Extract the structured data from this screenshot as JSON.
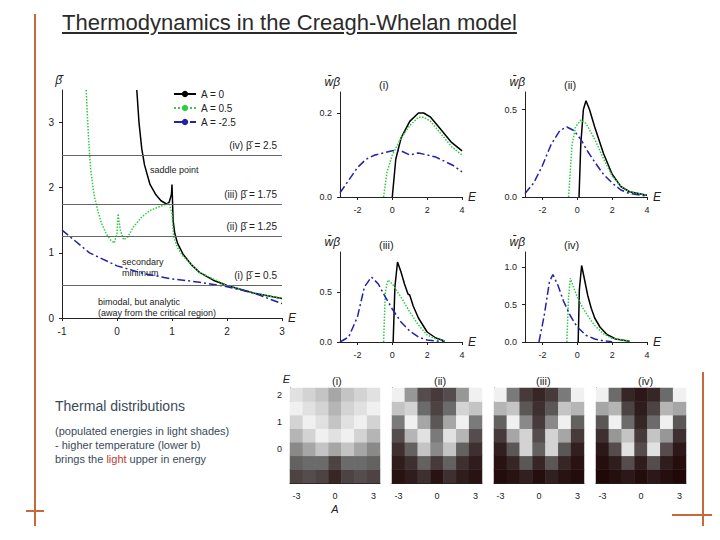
{
  "slide": {
    "title": "Thermodynamics in the Creagh-Whelan model",
    "caption": {
      "heading": "Thermal distributions",
      "lines": [
        [
          {
            "text": "(populated energies in light shades)"
          }
        ],
        [
          {
            "text": "- higher temperature (lower b)"
          }
        ],
        [
          {
            "text": "brings the "
          },
          {
            "text": "light",
            "color": "#c0392b"
          },
          {
            "text": " upper in energy"
          }
        ]
      ]
    }
  },
  "chart_data": [
    {
      "type": "line",
      "xlabel": "E",
      "ylabel": "β̄",
      "xlim": [
        -1,
        3
      ],
      "xticks": [
        -1,
        0,
        1,
        2,
        3
      ],
      "ylim": [
        0,
        3.5
      ],
      "yticks": [
        0,
        1,
        2,
        3
      ],
      "legend": "top",
      "series": [
        {
          "name": "A = 0",
          "color": "#000000",
          "line_style": "solid",
          "x": [
            0.36,
            0.4,
            0.45,
            0.5,
            0.6,
            0.7,
            0.8,
            0.9,
            0.95,
            0.99,
            1.0,
            1.02,
            1.05,
            1.1,
            1.2,
            1.35,
            1.5,
            1.75,
            2.0,
            2.5,
            3.0
          ],
          "values": [
            3.5,
            3.0,
            2.6,
            2.35,
            2.05,
            1.9,
            1.8,
            1.75,
            1.78,
            1.9,
            2.05,
            1.5,
            1.3,
            1.15,
            0.98,
            0.82,
            0.7,
            0.58,
            0.5,
            0.38,
            0.3
          ]
        },
        {
          "name": "A = 0.5",
          "color": "#2ecc40",
          "line_style": "dotted",
          "x": [
            -0.56,
            -0.52,
            -0.48,
            -0.42,
            -0.35,
            -0.28,
            -0.2,
            -0.12,
            -0.05,
            0.0,
            0.02,
            0.06,
            0.12,
            0.2,
            0.3,
            0.45,
            0.6,
            0.8,
            0.95,
            1.0,
            1.03,
            1.1,
            1.2,
            1.5,
            2.0,
            2.5,
            3.0
          ],
          "values": [
            3.5,
            2.8,
            2.3,
            1.9,
            1.65,
            1.45,
            1.3,
            1.2,
            1.15,
            1.3,
            1.6,
            1.35,
            1.2,
            1.25,
            1.4,
            1.55,
            1.65,
            1.72,
            1.76,
            1.6,
            1.25,
            1.08,
            0.95,
            0.7,
            0.5,
            0.38,
            0.3
          ]
        },
        {
          "name": "A = -2.5",
          "color": "#2222aa",
          "line_style": "dashdot",
          "x": [
            -1,
            -0.5,
            0,
            0.5,
            1,
            1.5,
            2,
            2.5,
            3
          ],
          "values": [
            1.35,
            1.0,
            0.8,
            0.68,
            0.6,
            0.55,
            0.48,
            0.38,
            0.22
          ]
        }
      ],
      "reference_lines": [
        {
          "value": 0.5,
          "label": "(i) β̄ = 0.5"
        },
        {
          "value": 1.25,
          "label": "(ii) β̄ = 1.25"
        },
        {
          "value": 1.75,
          "label": "(iii) β̄ = 1.75"
        },
        {
          "value": 2.5,
          "label": "(iv) β̄ = 2.5"
        }
      ],
      "annotations": [
        "saddle point",
        "secondary\nminimum",
        "bimodal, but analytic\n(away from the critical region)"
      ]
    },
    {
      "type": "line",
      "title": "(i)",
      "xlabel": "E",
      "ylabel": "w̄β",
      "xlim": [
        -3,
        4
      ],
      "xticks": [
        -2,
        0,
        2,
        4
      ],
      "ylim": [
        0,
        0.25
      ],
      "yticks": [
        {
          "value": 0,
          "label": "0.0"
        },
        {
          "value": 0.2,
          "label": "0.2"
        }
      ],
      "series": [
        {
          "color": "#000000",
          "line_style": "solid",
          "x": [
            0,
            0.2,
            0.5,
            1,
            1.5,
            1.8,
            2.2,
            2.8,
            3.4,
            4
          ],
          "values": [
            0,
            0.09,
            0.14,
            0.18,
            0.2,
            0.2,
            0.19,
            0.16,
            0.13,
            0.11
          ]
        },
        {
          "color": "#2ecc40",
          "line_style": "dotted",
          "x": [
            -0.5,
            -0.3,
            0,
            0.5,
            1,
            1.5,
            1.8,
            2.2,
            2.8,
            3.4,
            4
          ],
          "values": [
            0,
            0.06,
            0.1,
            0.14,
            0.17,
            0.19,
            0.19,
            0.18,
            0.15,
            0.12,
            0.1
          ]
        },
        {
          "color": "#2222aa",
          "line_style": "dashdot",
          "x": [
            -3,
            -2.5,
            -2,
            -1.5,
            -1,
            -0.5,
            0,
            0.5,
            1,
            1.5,
            2,
            2.5,
            3,
            3.5,
            4
          ],
          "values": [
            0.01,
            0.04,
            0.07,
            0.09,
            0.1,
            0.105,
            0.11,
            0.11,
            0.1,
            0.105,
            0.1,
            0.095,
            0.085,
            0.075,
            0.06
          ]
        }
      ]
    },
    {
      "type": "line",
      "title": "(ii)",
      "xlabel": "E",
      "ylabel": "w̄β",
      "xlim": [
        -3,
        4
      ],
      "xticks": [
        -2,
        0,
        2,
        4
      ],
      "ylim": [
        0,
        0.6
      ],
      "yticks": [
        {
          "value": 0,
          "label": "0.0"
        },
        {
          "value": 0.5,
          "label": "0.5"
        }
      ],
      "series": [
        {
          "color": "#000000",
          "line_style": "solid",
          "x": [
            0.1,
            0.2,
            0.35,
            0.5,
            0.7,
            1,
            1.5,
            2,
            2.5,
            3,
            4
          ],
          "values": [
            0,
            0.3,
            0.5,
            0.55,
            0.5,
            0.4,
            0.25,
            0.13,
            0.06,
            0.03,
            0.01
          ]
        },
        {
          "color": "#2ecc40",
          "line_style": "dotted",
          "x": [
            -0.5,
            -0.3,
            -0.1,
            0.2,
            0.5,
            1,
            1.5,
            2,
            2.5,
            3,
            4
          ],
          "values": [
            0,
            0.3,
            0.4,
            0.44,
            0.42,
            0.33,
            0.22,
            0.12,
            0.06,
            0.03,
            0.01
          ]
        },
        {
          "color": "#2222aa",
          "line_style": "dashdot",
          "x": [
            -3,
            -2.5,
            -2,
            -1.5,
            -1,
            -0.6,
            -0.2,
            0.2,
            0.6,
            1,
            1.5,
            2,
            2.5,
            3,
            4
          ],
          "values": [
            0.02,
            0.08,
            0.18,
            0.3,
            0.38,
            0.4,
            0.38,
            0.33,
            0.26,
            0.2,
            0.13,
            0.08,
            0.04,
            0.02,
            0.005
          ]
        }
      ]
    },
    {
      "type": "line",
      "title": "(iii)",
      "xlabel": "E",
      "ylabel": "w̄β",
      "xlim": [
        -3,
        4
      ],
      "xticks": [
        -2,
        0,
        2,
        4
      ],
      "ylim": [
        0,
        0.9
      ],
      "yticks": [
        {
          "value": 0,
          "label": "0.0"
        },
        {
          "value": 0.5,
          "label": "0.5"
        }
      ],
      "series": [
        {
          "color": "#000000",
          "line_style": "solid",
          "x": [
            0.05,
            0.15,
            0.3,
            0.5,
            0.7,
            0.9,
            1.0,
            1.2,
            1.5,
            2,
            2.5,
            3
          ],
          "values": [
            0,
            0.55,
            0.8,
            0.7,
            0.58,
            0.48,
            0.47,
            0.36,
            0.24,
            0.1,
            0.04,
            0.01
          ]
        },
        {
          "color": "#2ecc40",
          "line_style": "dotted",
          "x": [
            -0.5,
            -0.4,
            -0.25,
            0,
            0.3,
            0.6,
            1,
            1.5,
            2,
            2.5,
            3
          ],
          "values": [
            0,
            0.5,
            0.62,
            0.58,
            0.5,
            0.42,
            0.3,
            0.17,
            0.07,
            0.03,
            0.01
          ]
        },
        {
          "color": "#2222aa",
          "line_style": "dashdot",
          "x": [
            -3,
            -2.5,
            -2,
            -1.6,
            -1.2,
            -0.8,
            -0.4,
            0,
            0.5,
            1,
            1.5,
            2,
            3
          ],
          "values": [
            0,
            0.05,
            0.25,
            0.55,
            0.65,
            0.58,
            0.45,
            0.33,
            0.2,
            0.11,
            0.05,
            0.02,
            0
          ]
        }
      ]
    },
    {
      "type": "line",
      "title": "(iv)",
      "xlabel": "E",
      "ylabel": "w̄β",
      "xlim": [
        -3,
        4
      ],
      "xticks": [
        -2,
        0,
        2,
        4
      ],
      "ylim": [
        0,
        1.2
      ],
      "yticks": [
        {
          "value": 0,
          "label": "0.0"
        },
        {
          "value": 0.5,
          "label": "0.5"
        },
        {
          "value": 1,
          "label": "1.0"
        }
      ],
      "series": [
        {
          "color": "#000000",
          "line_style": "solid",
          "x": [
            0.05,
            0.12,
            0.25,
            0.4,
            0.6,
            0.8,
            1,
            1.3,
            1.7,
            2.2,
            3
          ],
          "values": [
            0,
            0.7,
            1.02,
            0.85,
            0.62,
            0.45,
            0.32,
            0.2,
            0.1,
            0.04,
            0.01
          ]
        },
        {
          "color": "#2ecc40",
          "line_style": "dotted",
          "x": [
            -0.6,
            -0.5,
            -0.4,
            -0.2,
            0,
            0.3,
            0.6,
            1,
            1.5,
            2,
            3
          ],
          "values": [
            0,
            0.6,
            0.85,
            0.72,
            0.6,
            0.46,
            0.35,
            0.22,
            0.11,
            0.05,
            0.01
          ]
        },
        {
          "color": "#2222aa",
          "line_style": "dashdot",
          "x": [
            -2.2,
            -1.9,
            -1.6,
            -1.4,
            -1.1,
            -0.8,
            -0.4,
            0,
            0.5,
            1,
            1.5,
            2
          ],
          "values": [
            0,
            0.35,
            0.8,
            0.9,
            0.75,
            0.55,
            0.35,
            0.2,
            0.09,
            0.04,
            0.015,
            0.005
          ]
        }
      ]
    },
    {
      "type": "heatmap",
      "title": "(i)",
      "xlabel": "A",
      "ylabel": "E",
      "x": [
        -3,
        -2,
        -1,
        0,
        1,
        2,
        3
      ],
      "y": [
        -1,
        -0.5,
        0,
        0.5,
        1,
        1.5,
        2
      ],
      "xticks": [
        -3,
        0,
        3
      ],
      "yticks": [
        0,
        1,
        2
      ],
      "zlim": [
        0,
        1
      ],
      "cells": [
        [
          0.3,
          0.35,
          0.3,
          0.15,
          0.3,
          0.35,
          0.3
        ],
        [
          0.45,
          0.5,
          0.5,
          0.3,
          0.5,
          0.5,
          0.45
        ],
        [
          0.6,
          0.7,
          0.8,
          0.7,
          0.8,
          0.7,
          0.6
        ],
        [
          0.75,
          0.85,
          0.95,
          0.9,
          0.95,
          0.85,
          0.75
        ],
        [
          0.85,
          0.95,
          0.9,
          0.8,
          0.9,
          0.95,
          0.85
        ],
        [
          0.95,
          0.9,
          0.85,
          0.75,
          0.85,
          0.9,
          0.95
        ],
        [
          0.9,
          0.85,
          0.8,
          0.7,
          0.8,
          0.85,
          0.9
        ]
      ]
    },
    {
      "type": "heatmap",
      "title": "(ii)",
      "tick_labels": "x",
      "x": [
        -3,
        -2,
        -1,
        0,
        1,
        2,
        3
      ],
      "y": [
        -1,
        -0.5,
        0,
        0.5,
        1,
        1.5,
        2
      ],
      "xticks": [
        -3,
        0,
        3
      ],
      "yticks": [
        0,
        1,
        2
      ],
      "zlim": [
        0,
        1
      ],
      "cells": [
        [
          0.05,
          0.1,
          0.2,
          0.05,
          0.2,
          0.1,
          0.05
        ],
        [
          0.1,
          0.2,
          0.45,
          0.25,
          0.45,
          0.2,
          0.1
        ],
        [
          0.2,
          0.45,
          0.8,
          0.6,
          0.8,
          0.45,
          0.2
        ],
        [
          0.35,
          0.75,
          0.9,
          0.55,
          0.9,
          0.75,
          0.35
        ],
        [
          0.55,
          0.95,
          0.7,
          0.4,
          0.7,
          0.95,
          0.55
        ],
        [
          0.8,
          0.85,
          0.5,
          0.3,
          0.5,
          0.85,
          0.8
        ],
        [
          0.95,
          0.65,
          0.35,
          0.25,
          0.35,
          0.65,
          0.95
        ]
      ]
    },
    {
      "type": "heatmap",
      "title": "(iii)",
      "tick_labels": "x",
      "x": [
        -3,
        -2,
        -1,
        0,
        1,
        2,
        3
      ],
      "y": [
        -1,
        -0.5,
        0,
        0.5,
        1,
        1.5,
        2
      ],
      "xticks": [
        -3,
        0,
        3
      ],
      "yticks": [
        0,
        1,
        2
      ],
      "zlim": [
        0,
        1
      ],
      "cells": [
        [
          0.02,
          0.05,
          0.12,
          0.03,
          0.12,
          0.05,
          0.02
        ],
        [
          0.05,
          0.15,
          0.4,
          0.15,
          0.4,
          0.15,
          0.05
        ],
        [
          0.12,
          0.4,
          0.85,
          0.45,
          0.85,
          0.4,
          0.12
        ],
        [
          0.25,
          0.7,
          0.85,
          0.35,
          0.85,
          0.7,
          0.25
        ],
        [
          0.45,
          0.95,
          0.6,
          0.25,
          0.6,
          0.95,
          0.45
        ],
        [
          0.75,
          0.8,
          0.4,
          0.2,
          0.4,
          0.8,
          0.75
        ],
        [
          0.95,
          0.55,
          0.25,
          0.15,
          0.25,
          0.55,
          0.95
        ]
      ]
    },
    {
      "type": "heatmap",
      "title": "(iv)",
      "tick_labels": "x",
      "x": [
        -3,
        -2,
        -1,
        0,
        1,
        2,
        3
      ],
      "y": [
        -1,
        -0.5,
        0,
        0.5,
        1,
        1.5,
        2
      ],
      "xticks": [
        -3,
        0,
        3
      ],
      "yticks": [
        0,
        1,
        2
      ],
      "zlim": [
        0,
        1
      ],
      "cells": [
        [
          0.0,
          0.03,
          0.08,
          0.02,
          0.08,
          0.03,
          0.0
        ],
        [
          0.03,
          0.1,
          0.35,
          0.1,
          0.35,
          0.1,
          0.03
        ],
        [
          0.08,
          0.35,
          0.9,
          0.35,
          0.9,
          0.35,
          0.08
        ],
        [
          0.2,
          0.65,
          0.8,
          0.25,
          0.8,
          0.65,
          0.2
        ],
        [
          0.4,
          0.95,
          0.5,
          0.15,
          0.5,
          0.95,
          0.4
        ],
        [
          0.7,
          0.75,
          0.3,
          0.1,
          0.3,
          0.75,
          0.7
        ],
        [
          0.95,
          0.5,
          0.15,
          0.08,
          0.15,
          0.5,
          0.95
        ]
      ]
    }
  ]
}
